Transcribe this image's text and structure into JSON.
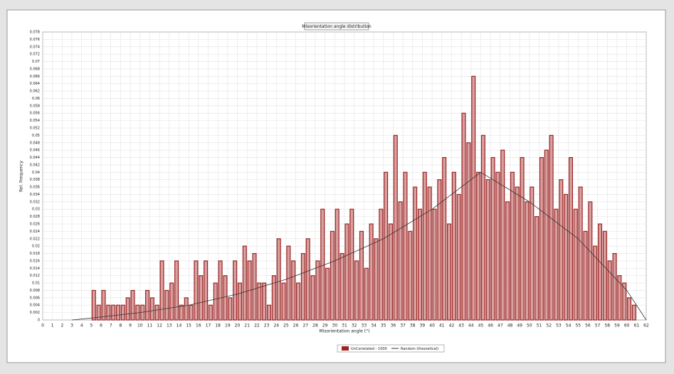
{
  "chart_data": {
    "type": "histogram",
    "title": "Misorientation angle distribution",
    "x_label": "Misorientation angle (°)",
    "y_label": "Rel. Frequency",
    "xlim": [
      0,
      62
    ],
    "ylim": [
      0,
      0.078
    ],
    "grid": true,
    "legend": "bottom",
    "xticks": [
      0,
      1,
      2,
      3,
      4,
      5,
      6,
      7,
      8,
      9,
      10,
      11,
      12,
      13,
      14,
      15,
      16,
      17,
      18,
      19,
      20,
      21,
      22,
      23,
      24,
      25,
      26,
      27,
      28,
      29,
      30,
      31,
      32,
      33,
      34,
      35,
      36,
      37,
      38,
      39,
      40,
      41,
      42,
      43,
      44,
      45,
      46,
      47,
      48,
      49,
      50,
      51,
      52,
      53,
      54,
      55,
      56,
      57,
      58,
      59,
      60,
      61,
      62
    ],
    "yticks": [
      0,
      0.002,
      0.004,
      0.006,
      0.008,
      0.01,
      0.012,
      0.014,
      0.016,
      0.018,
      0.02,
      0.022,
      0.024,
      0.026,
      0.028,
      0.03,
      0.032,
      0.034,
      0.036,
      0.038,
      0.04,
      0.042,
      0.044,
      0.046,
      0.048,
      0.05,
      0.052,
      0.054,
      0.056,
      0.058,
      0.06,
      0.062,
      0.064,
      0.066,
      0.068,
      0.07,
      0.072,
      0.074,
      0.076,
      0.078
    ],
    "series": [
      {
        "name": "UnCorrelated - 1000",
        "color": "#9b2323",
        "bins": [
          5,
          5.5,
          6,
          6.5,
          7,
          7.5,
          8,
          8.5,
          9,
          9.5,
          10,
          10.5,
          11,
          11.5,
          12,
          12.5,
          13,
          13.5,
          14,
          14.5,
          15,
          15.5,
          16,
          16.5,
          17,
          17.5,
          18,
          18.5,
          19,
          19.5,
          20,
          20.5,
          21,
          21.5,
          22,
          22.5,
          23,
          23.5,
          24,
          24.5,
          25,
          25.5,
          26,
          26.5,
          27,
          27.5,
          28,
          28.5,
          29,
          29.5,
          30,
          30.5,
          31,
          31.5,
          32,
          32.5,
          33,
          33.5,
          34,
          34.5,
          35,
          35.5,
          36,
          36.5,
          37,
          37.5,
          38,
          38.5,
          39,
          39.5,
          40,
          40.5,
          41,
          41.5,
          42,
          42.5,
          43,
          43.5,
          44,
          44.5,
          45,
          45.5,
          46,
          46.5,
          47,
          47.5,
          48,
          48.5,
          49,
          49.5,
          50,
          50.5,
          51,
          51.5,
          52,
          52.5,
          53,
          53.5,
          54,
          54.5,
          55,
          55.5,
          56,
          56.5,
          57,
          57.5,
          58,
          58.5,
          59,
          59.5,
          60,
          60.5,
          61
        ],
        "values": [
          0.008,
          0.004,
          0.008,
          0.004,
          0.004,
          0.004,
          0.004,
          0.006,
          0.008,
          0.004,
          0.004,
          0.008,
          0.006,
          0.004,
          0.016,
          0.008,
          0.01,
          0.016,
          0.004,
          0.006,
          0.004,
          0.016,
          0.012,
          0.016,
          0.004,
          0.01,
          0.016,
          0.012,
          0.006,
          0.016,
          0.01,
          0.02,
          0.016,
          0.018,
          0.01,
          0.01,
          0.004,
          0.012,
          0.022,
          0.01,
          0.02,
          0.016,
          0.01,
          0.018,
          0.022,
          0.012,
          0.016,
          0.03,
          0.014,
          0.024,
          0.03,
          0.018,
          0.026,
          0.03,
          0.016,
          0.024,
          0.014,
          0.026,
          0.022,
          0.03,
          0.04,
          0.026,
          0.05,
          0.032,
          0.04,
          0.024,
          0.036,
          0.03,
          0.04,
          0.036,
          0.03,
          0.038,
          0.044,
          0.026,
          0.04,
          0.034,
          0.056,
          0.048,
          0.066,
          0.04,
          0.05,
          0.038,
          0.044,
          0.04,
          0.046,
          0.032,
          0.04,
          0.036,
          0.044,
          0.032,
          0.036,
          0.028,
          0.044,
          0.046,
          0.05,
          0.03,
          0.038,
          0.034,
          0.044,
          0.03,
          0.036,
          0.024,
          0.032,
          0.02,
          0.026,
          0.024,
          0.016,
          0.018,
          0.012,
          0.01,
          0.006,
          0.004
        ]
      },
      {
        "name": "Random (theoretical)",
        "type": "line",
        "color": "#333333",
        "x": [
          3,
          5,
          10,
          15,
          20,
          25,
          30,
          35,
          40,
          45,
          50,
          55,
          60,
          62
        ],
        "values": [
          0,
          0.0005,
          0.002,
          0.004,
          0.007,
          0.011,
          0.016,
          0.022,
          0.03,
          0.04,
          0.032,
          0.022,
          0.008,
          0
        ]
      }
    ]
  }
}
